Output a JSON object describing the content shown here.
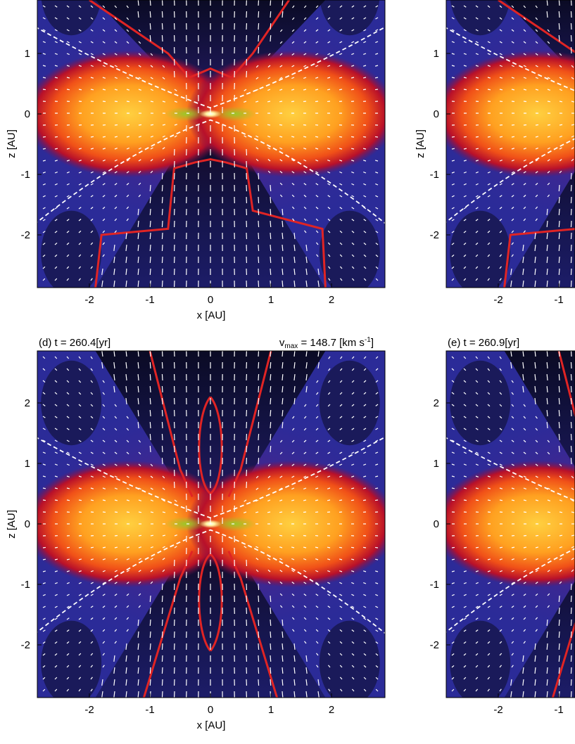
{
  "figure": {
    "panels": [
      {
        "id": "top-left",
        "title": "",
        "vmax_text": "",
        "xlabel": "x [AU]",
        "ylabel": "z [AU]",
        "x_ticks": [
          "-2",
          "-1",
          "0",
          "1",
          "2"
        ],
        "y_ticks": [
          "-2",
          "-1",
          "0",
          "1"
        ]
      },
      {
        "id": "top-right",
        "title": "",
        "vmax_text": "",
        "xlabel": "",
        "ylabel": "z [AU]",
        "x_ticks": [
          "-2",
          "-1"
        ],
        "y_ticks": [
          "-2",
          "-1",
          "0",
          "1"
        ]
      },
      {
        "id": "d",
        "title": "(d) t = 260.4[yr]",
        "vmax_prefix": "v",
        "vmax_sub": "max",
        "vmax_value": " = 148.7 [km s",
        "vmax_sup": "-1",
        "vmax_close": "]",
        "xlabel": "x [AU]",
        "ylabel": "z [AU]",
        "x_ticks": [
          "-2",
          "-1",
          "0",
          "1",
          "2"
        ],
        "y_ticks": [
          "-2",
          "-1",
          "0",
          "1",
          "2"
        ]
      },
      {
        "id": "e",
        "title": "(e) t = 260.9[yr]",
        "xlabel": "",
        "ylabel": "",
        "x_ticks": [
          "-2",
          "-1"
        ],
        "y_ticks": [
          "-2",
          "-1",
          "0",
          "1",
          "2"
        ]
      }
    ]
  },
  "chart_data": [
    {
      "type": "heatmap",
      "panel": "top-left",
      "title": "",
      "xlabel": "x [AU]",
      "ylabel": "z [AU]",
      "xlim": [
        -2.9,
        2.9
      ],
      "ylim": [
        -2.9,
        2.0
      ],
      "x_ticks": [
        -2,
        -1,
        0,
        1,
        2
      ],
      "y_ticks": [
        -2,
        -1,
        0,
        1
      ],
      "overlays": [
        "velocity vectors (white arrows)",
        "red solid contour",
        "white dashed contour"
      ],
      "colors": {
        "disk": "#ffb12a",
        "outflow": "#0a0a1e",
        "envelope": "#2a2a9a",
        "contour_solid": "#e02020",
        "contour_dashed": "#ffffff"
      }
    },
    {
      "type": "heatmap",
      "panel": "top-right",
      "title": "",
      "xlabel": "",
      "ylabel": "z [AU]",
      "xlim": [
        -2.9,
        -0.6
      ],
      "ylim": [
        -2.9,
        2.0
      ],
      "x_ticks": [
        -2,
        -1
      ],
      "y_ticks": [
        -2,
        -1,
        0,
        1
      ]
    },
    {
      "type": "heatmap",
      "panel": "d",
      "title": "(d) t = 260.4[yr]",
      "annotation": "vmax = 148.7 [km s-1]",
      "xlabel": "x [AU]",
      "ylabel": "z [AU]",
      "xlim": [
        -2.9,
        2.9
      ],
      "ylim": [
        -2.9,
        2.9
      ],
      "x_ticks": [
        -2,
        -1,
        0,
        1,
        2
      ],
      "y_ticks": [
        -2,
        -1,
        0,
        1,
        2
      ],
      "overlays": [
        "velocity vectors (white arrows)",
        "red solid contour",
        "white dashed contour"
      ]
    },
    {
      "type": "heatmap",
      "panel": "e",
      "title": "(e) t = 260.9[yr]",
      "xlabel": "",
      "ylabel": "",
      "xlim": [
        -2.9,
        -0.6
      ],
      "ylim": [
        -2.9,
        2.9
      ],
      "x_ticks": [
        -2,
        -1
      ],
      "y_ticks": [
        -2,
        -1,
        0,
        1,
        2
      ]
    }
  ]
}
